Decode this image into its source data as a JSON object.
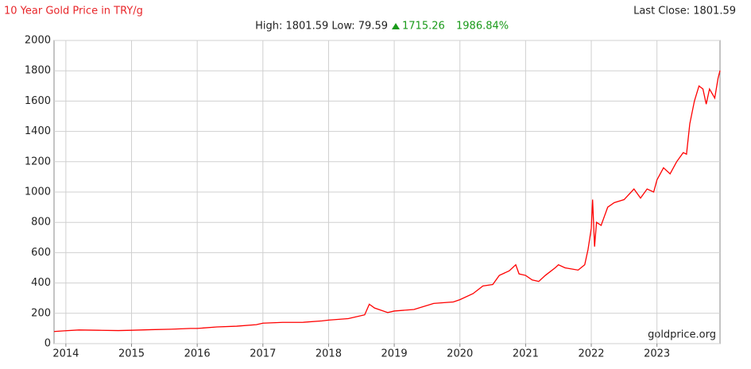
{
  "chart_data": {
    "type": "line",
    "title": "10 Year Gold Price in TRY/g",
    "last_close_label": "Last Close: 1801.59",
    "high_low": "High: 1801.59 Low: 79.59",
    "change": "1715.26",
    "change_pct": "1986.84%",
    "watermark": "goldprice.org",
    "x": [
      2013.82,
      2014.0,
      2014.2,
      2014.5,
      2014.8,
      2015.0,
      2015.3,
      2015.6,
      2015.9,
      2016.0,
      2016.3,
      2016.6,
      2016.9,
      2017.0,
      2017.3,
      2017.6,
      2017.9,
      2018.0,
      2018.3,
      2018.55,
      2018.62,
      2018.7,
      2018.9,
      2019.0,
      2019.3,
      2019.6,
      2019.9,
      2020.0,
      2020.2,
      2020.35,
      2020.5,
      2020.6,
      2020.75,
      2020.85,
      2020.9,
      2021.0,
      2021.1,
      2021.2,
      2021.3,
      2021.45,
      2021.5,
      2021.6,
      2021.8,
      2021.9,
      2021.95,
      2022.0,
      2022.02,
      2022.05,
      2022.08,
      2022.15,
      2022.25,
      2022.35,
      2022.5,
      2022.65,
      2022.75,
      2022.85,
      2022.95,
      2023.0,
      2023.1,
      2023.2,
      2023.3,
      2023.4,
      2023.45,
      2023.5,
      2023.57,
      2023.64,
      2023.7,
      2023.75,
      2023.8,
      2023.88,
      2023.93,
      2023.96
    ],
    "series": [
      {
        "name": "Gold Price TRY/g",
        "color": "#ff0000",
        "values": [
          80,
          85,
          90,
          88,
          86,
          88,
          92,
          95,
          100,
          100,
          110,
          115,
          125,
          135,
          140,
          140,
          150,
          155,
          165,
          190,
          260,
          235,
          205,
          215,
          225,
          265,
          275,
          290,
          330,
          380,
          390,
          450,
          480,
          520,
          460,
          450,
          420,
          410,
          450,
          500,
          520,
          500,
          485,
          520,
          620,
          760,
          950,
          640,
          800,
          780,
          900,
          930,
          950,
          1020,
          960,
          1020,
          1000,
          1080,
          1160,
          1120,
          1200,
          1260,
          1250,
          1450,
          1600,
          1700,
          1680,
          1580,
          1680,
          1620,
          1750,
          1801.59
        ]
      }
    ],
    "xlim": [
      2013.82,
      2023.96
    ],
    "xticks": [
      2014,
      2015,
      2016,
      2017,
      2018,
      2019,
      2020,
      2021,
      2022,
      2023
    ],
    "ylim": [
      0,
      2000
    ],
    "yticks": [
      0,
      200,
      400,
      600,
      800,
      1000,
      1200,
      1400,
      1600,
      1800,
      2000
    ],
    "grid": true
  }
}
